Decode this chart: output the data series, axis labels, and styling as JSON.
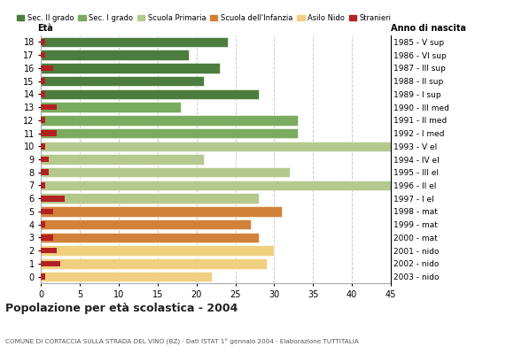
{
  "ages": [
    18,
    17,
    16,
    15,
    14,
    13,
    12,
    11,
    10,
    9,
    8,
    7,
    6,
    5,
    4,
    3,
    2,
    1,
    0
  ],
  "bar_values": [
    24,
    19,
    23,
    21,
    28,
    18,
    33,
    33,
    45,
    21,
    32,
    45,
    28,
    31,
    27,
    28,
    30,
    29,
    22
  ],
  "stranieri": [
    0.5,
    0.5,
    1.5,
    0.5,
    0.5,
    2,
    0.5,
    2,
    0.5,
    1,
    1,
    0.5,
    3,
    1.5,
    0.5,
    1.5,
    2,
    2.5,
    0.5
  ],
  "anno_di_nascita": [
    "1985 - V sup",
    "1986 - VI sup",
    "1987 - III sup",
    "1988 - II sup",
    "1989 - I sup",
    "1990 - III med",
    "1991 - II med",
    "1992 - I med",
    "1993 - V el",
    "1994 - IV el",
    "1995 - III el",
    "1996 - II el",
    "1997 - I el",
    "1998 - mat",
    "1999 - mat",
    "2000 - mat",
    "2001 - nido",
    "2002 - nido",
    "2003 - nido"
  ],
  "bar_colors": [
    "#4d7c3f",
    "#4d7c3f",
    "#4d7c3f",
    "#4d7c3f",
    "#4d7c3f",
    "#7aab5e",
    "#7aab5e",
    "#7aab5e",
    "#b5c98e",
    "#b5c98e",
    "#b5c98e",
    "#b5c98e",
    "#b5c98e",
    "#d2813a",
    "#d2813a",
    "#d2813a",
    "#f0d080",
    "#f0d080",
    "#f0d080"
  ],
  "legend_labels": [
    "Sec. II grado",
    "Sec. I grado",
    "Scuola Primaria",
    "Scuola dell'Infanzia",
    "Asilo Nido",
    "Stranieri"
  ],
  "legend_colors": [
    "#4d7c3f",
    "#7aab5e",
    "#b5c98e",
    "#d2813a",
    "#f0d080",
    "#b22222"
  ],
  "title": "Popolazione per età scolastica - 2004",
  "subtitle": "COMUNE DI CORTACCIA SULLA STRADA DEL VINO (BZ) · Dati ISTAT 1° gennaio 2004 · Elaborazione TUTTITALIA",
  "xlabel_eta": "Età",
  "xlabel_anno": "Anno di nascita",
  "xlim": [
    0,
    45
  ],
  "xticks": [
    0,
    5,
    10,
    15,
    20,
    25,
    30,
    35,
    40,
    45
  ],
  "stranieri_color": "#b22222",
  "bg_color": "#ffffff",
  "grid_color": "#cccccc"
}
